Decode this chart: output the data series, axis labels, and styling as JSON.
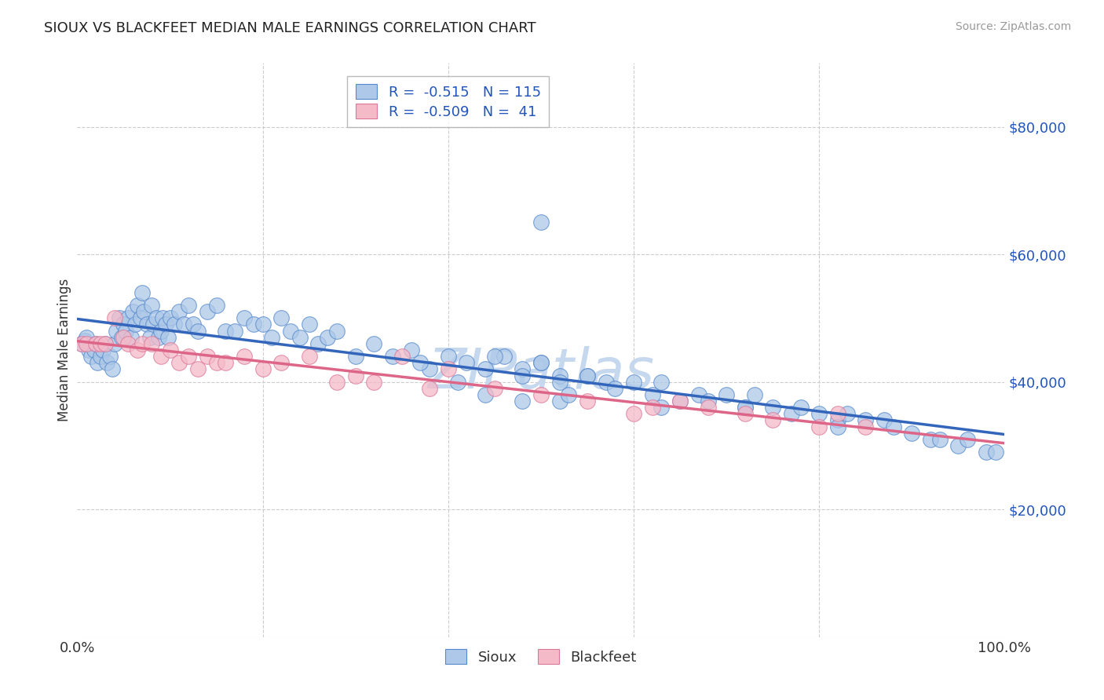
{
  "title": "SIOUX VS BLACKFEET MEDIAN MALE EARNINGS CORRELATION CHART",
  "source": "Source: ZipAtlas.com",
  "ylabel": "Median Male Earnings",
  "yticks": [
    0,
    20000,
    40000,
    60000,
    80000
  ],
  "ytick_labels": [
    "",
    "$20,000",
    "$40,000",
    "$60,000",
    "$80,000"
  ],
  "ymin": 0,
  "ymax": 90000,
  "xmin": 0.0,
  "xmax": 1.0,
  "sioux_color": "#adc8e8",
  "sioux_edge_color": "#5588cc",
  "sioux_line_color": "#3366bb",
  "blackfeet_color": "#f4bac8",
  "blackfeet_edge_color": "#dd7799",
  "blackfeet_line_color": "#dd6688",
  "sioux_R": -0.515,
  "sioux_N": 115,
  "blackfeet_R": -0.509,
  "blackfeet_N": 41,
  "watermark": "ZIPatlas",
  "watermark_color": "#c5d8ed",
  "legend_R_color": "#2255bb",
  "ytick_color": "#2255bb",
  "sioux_x": [
    0.005,
    0.008,
    0.01,
    0.012,
    0.015,
    0.018,
    0.02,
    0.022,
    0.025,
    0.028,
    0.03,
    0.032,
    0.035,
    0.038,
    0.04,
    0.042,
    0.045,
    0.048,
    0.05,
    0.052,
    0.055,
    0.058,
    0.06,
    0.062,
    0.065,
    0.068,
    0.07,
    0.072,
    0.075,
    0.078,
    0.08,
    0.082,
    0.085,
    0.088,
    0.09,
    0.092,
    0.095,
    0.098,
    0.1,
    0.105,
    0.11,
    0.115,
    0.12,
    0.125,
    0.13,
    0.14,
    0.15,
    0.16,
    0.17,
    0.18,
    0.19,
    0.2,
    0.21,
    0.22,
    0.23,
    0.24,
    0.25,
    0.26,
    0.27,
    0.28,
    0.3,
    0.32,
    0.34,
    0.36,
    0.38,
    0.4,
    0.42,
    0.44,
    0.46,
    0.48,
    0.5,
    0.52,
    0.5,
    0.55,
    0.57,
    0.45,
    0.48,
    0.5,
    0.52,
    0.55,
    0.58,
    0.6,
    0.62,
    0.63,
    0.65,
    0.67,
    0.68,
    0.7,
    0.72,
    0.73,
    0.75,
    0.77,
    0.78,
    0.8,
    0.82,
    0.83,
    0.85,
    0.87,
    0.88,
    0.9,
    0.92,
    0.93,
    0.95,
    0.96,
    0.98,
    0.99,
    0.52,
    0.63,
    0.72,
    0.82,
    0.37,
    0.41,
    0.44,
    0.48,
    0.53
  ],
  "sioux_y": [
    46000,
    46500,
    47000,
    45000,
    44000,
    45000,
    46000,
    43000,
    44000,
    45000,
    46000,
    43000,
    44000,
    42000,
    46000,
    48000,
    50000,
    47000,
    49000,
    48000,
    50000,
    47000,
    51000,
    49000,
    52000,
    50000,
    54000,
    51000,
    49000,
    47000,
    52000,
    49000,
    50000,
    47000,
    48000,
    50000,
    49000,
    47000,
    50000,
    49000,
    51000,
    49000,
    52000,
    49000,
    48000,
    51000,
    52000,
    48000,
    48000,
    50000,
    49000,
    49000,
    47000,
    50000,
    48000,
    47000,
    49000,
    46000,
    47000,
    48000,
    44000,
    46000,
    44000,
    45000,
    42000,
    44000,
    43000,
    42000,
    44000,
    42000,
    43000,
    41000,
    65000,
    41000,
    40000,
    44000,
    41000,
    43000,
    40000,
    41000,
    39000,
    40000,
    38000,
    40000,
    37000,
    38000,
    37000,
    38000,
    36000,
    38000,
    36000,
    35000,
    36000,
    35000,
    34000,
    35000,
    34000,
    34000,
    33000,
    32000,
    31000,
    31000,
    30000,
    31000,
    29000,
    29000,
    37000,
    36000,
    36000,
    33000,
    43000,
    40000,
    38000,
    37000,
    38000
  ],
  "blackfeet_x": [
    0.005,
    0.01,
    0.02,
    0.025,
    0.03,
    0.04,
    0.05,
    0.055,
    0.065,
    0.07,
    0.08,
    0.09,
    0.1,
    0.11,
    0.12,
    0.13,
    0.14,
    0.15,
    0.16,
    0.18,
    0.2,
    0.22,
    0.25,
    0.28,
    0.3,
    0.32,
    0.35,
    0.38,
    0.4,
    0.45,
    0.5,
    0.55,
    0.6,
    0.62,
    0.65,
    0.68,
    0.72,
    0.75,
    0.8,
    0.82,
    0.85
  ],
  "blackfeet_y": [
    46000,
    46000,
    46000,
    46000,
    46000,
    50000,
    47000,
    46000,
    45000,
    46000,
    46000,
    44000,
    45000,
    43000,
    44000,
    42000,
    44000,
    43000,
    43000,
    44000,
    42000,
    43000,
    44000,
    40000,
    41000,
    40000,
    44000,
    39000,
    42000,
    39000,
    38000,
    37000,
    35000,
    36000,
    37000,
    36000,
    35000,
    34000,
    33000,
    35000,
    33000
  ]
}
